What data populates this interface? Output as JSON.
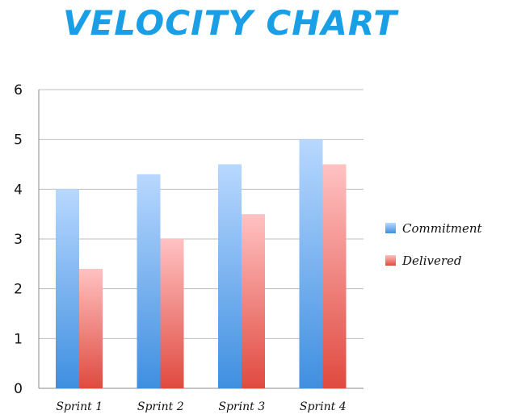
{
  "chart_data": {
    "type": "bar",
    "title": "VELOCITY CHART",
    "categories": [
      "Sprint 1",
      "Sprint 2",
      "Sprint 3",
      "Sprint 4"
    ],
    "series": [
      {
        "name": "Commitment",
        "values": [
          4.0,
          4.3,
          4.5,
          5.0
        ]
      },
      {
        "name": "Delivered",
        "values": [
          2.4,
          3.0,
          3.5,
          4.5
        ]
      }
    ],
    "ylim": [
      0,
      6
    ],
    "yticks": [
      "0",
      "1",
      "2",
      "3",
      "4",
      "5",
      "6"
    ],
    "grid": true,
    "legend_position": "right",
    "colors": {
      "title": "#1a9fe6",
      "commitment_top": "#b8d8ff",
      "commitment_bottom": "#3f8fe0",
      "delivered_top": "#ffc2c2",
      "delivered_bottom": "#e04a40",
      "grid": "#bdbdbd",
      "axis": "#8a8a8a"
    }
  }
}
